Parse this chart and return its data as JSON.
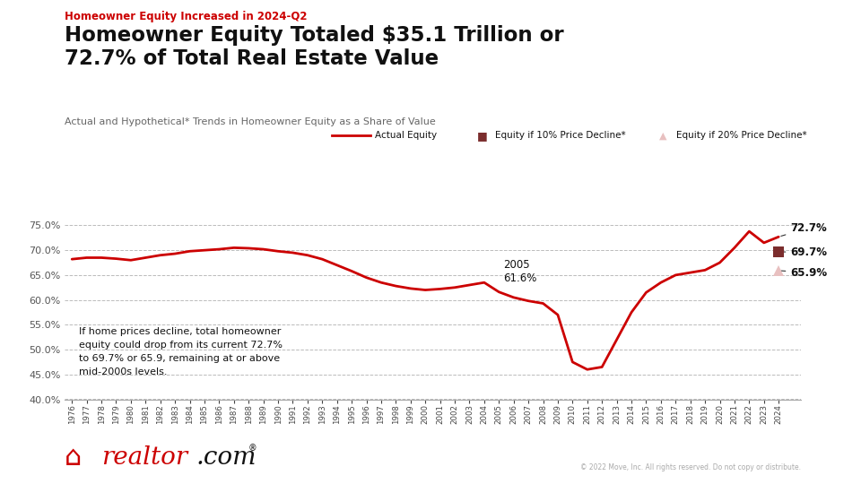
{
  "supertitle": "Homeowner Equity Increased in 2024-Q2",
  "title": "Homeowner Equity Totaled $35.1 Trillion or\n72.7% of Total Real Estate Value",
  "subtitle": "Actual and Hypothetical* Trends in Homeowner Equity as a Share of Value",
  "background_color": "#ffffff",
  "supertitle_color": "#cc0000",
  "title_color": "#111111",
  "line_color": "#cc0000",
  "grid_color": "#bbbbbb",
  "annotation_text": "If home prices decline, total homeowner\nequity could drop from its current 72.7%\nto 69.7% or 65.9, remaining at or above\nmid-2000s levels.",
  "label_2005": "2005\n61.6%",
  "label_727": "72.7%",
  "label_697": "69.7%",
  "label_659": "65.9%",
  "dot_10pct_color": "#7b2d2d",
  "dot_20pct_color": "#e8c0c0",
  "ylim": [
    40.0,
    77.5
  ],
  "yticks": [
    40.0,
    45.0,
    50.0,
    55.0,
    60.0,
    65.0,
    70.0,
    75.0
  ],
  "years": [
    1976,
    1977,
    1978,
    1979,
    1980,
    1981,
    1982,
    1983,
    1984,
    1985,
    1986,
    1987,
    1988,
    1989,
    1990,
    1991,
    1992,
    1993,
    1994,
    1995,
    1996,
    1997,
    1998,
    1999,
    2000,
    2001,
    2002,
    2003,
    2004,
    2005,
    2006,
    2007,
    2008,
    2009,
    2010,
    2011,
    2012,
    2013,
    2014,
    2015,
    2016,
    2017,
    2018,
    2019,
    2020,
    2021,
    2022,
    2023,
    2024
  ],
  "values": [
    68.2,
    68.5,
    68.5,
    68.3,
    68.0,
    68.5,
    69.0,
    69.3,
    69.8,
    70.0,
    70.2,
    70.5,
    70.4,
    70.2,
    69.8,
    69.5,
    69.0,
    68.2,
    67.0,
    65.8,
    64.5,
    63.5,
    62.8,
    62.3,
    62.0,
    62.2,
    62.5,
    63.0,
    63.5,
    61.6,
    60.5,
    59.8,
    59.3,
    57.0,
    47.5,
    46.0,
    46.5,
    52.0,
    57.5,
    61.5,
    63.5,
    65.0,
    65.5,
    66.0,
    67.5,
    70.5,
    73.8,
    71.5,
    72.7
  ],
  "value_10pct": 69.7,
  "value_20pct": 65.9,
  "realtor_red": "#cc0000",
  "footer_text": "© 2022 Move, Inc. All rights reserved. Do not copy or distribute."
}
